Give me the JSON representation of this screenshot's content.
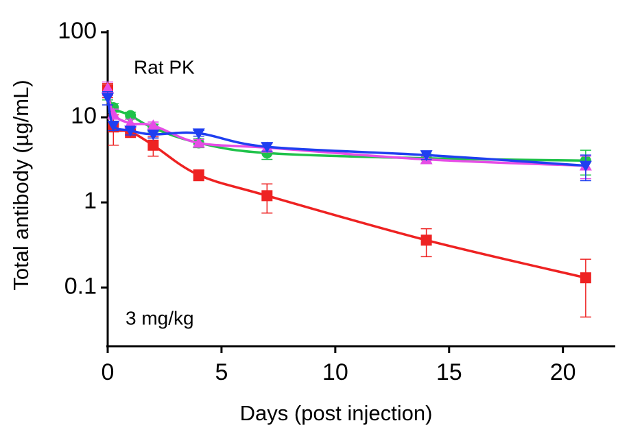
{
  "chart_data": {
    "type": "scatter",
    "x_label": "Days (post injection)",
    "y_label": "Total antibody (µg/mL)",
    "annotations": [
      "Rat PK",
      "3 mg/kg"
    ],
    "x": [
      0,
      0.25,
      1,
      2,
      4,
      7,
      14,
      21
    ],
    "series": [
      {
        "color": "#1fc24a",
        "marker": "circle",
        "values": [
          20,
          13,
          10.5,
          7.5,
          5,
          3.8,
          3.3,
          3.1
        ],
        "errors": [
          4,
          1.5,
          1,
          0.8,
          0.6,
          0.6,
          0.4,
          1
        ]
      },
      {
        "color": "#ee2222",
        "marker": "square",
        "values": [
          21,
          7.7,
          6.8,
          4.7,
          2.1,
          1.2,
          0.36,
          0.13
        ],
        "errors": [
          4,
          3,
          1,
          1.2,
          0.3,
          0.45,
          0.13,
          0.085
        ]
      },
      {
        "color": "#e64de6",
        "marker": "triangle-up",
        "values": [
          22,
          11,
          8.5,
          8,
          5,
          4.4,
          3.2,
          2.7
        ],
        "errors": [
          4,
          1.5,
          1,
          0.8,
          0.5,
          0.5,
          0.3,
          0.8
        ]
      },
      {
        "color": "#1f3ff0",
        "marker": "triangle-down",
        "values": [
          17,
          8,
          7,
          6.3,
          6.5,
          4.5,
          3.6,
          2.7
        ],
        "errors": [
          3,
          1,
          0.8,
          0.6,
          0.5,
          0.5,
          0.4,
          0.9
        ]
      }
    ],
    "xlim": [
      0,
      22.3
    ],
    "xticks": [
      0,
      5,
      10,
      15,
      20
    ],
    "ylim": [
      0.0204,
      100
    ],
    "yticks": [
      0.1,
      1,
      10,
      100
    ],
    "log_y": true
  }
}
